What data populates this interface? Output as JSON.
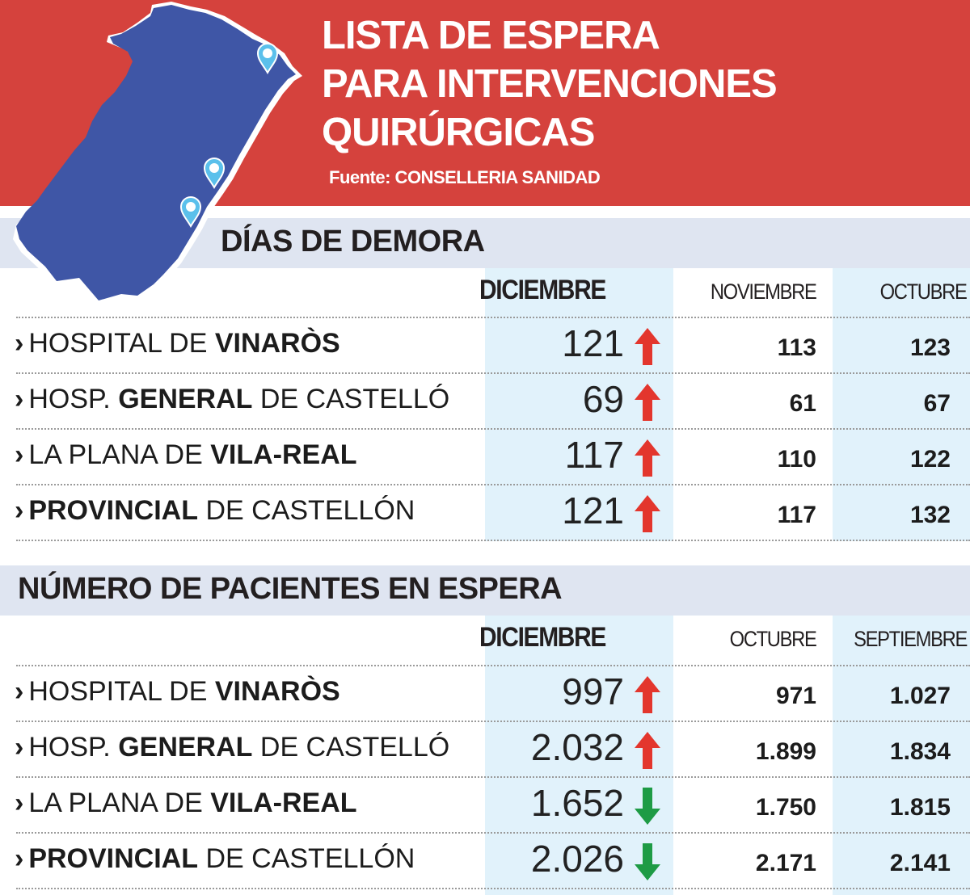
{
  "header": {
    "title_lines": [
      "LISTA DE ESPERA",
      "PARA INTERVENCIONES",
      "QUIRÚRGICAS"
    ],
    "source": "Fuente: CONSELLERIA SANIDAD",
    "background_color": "#d5423d",
    "map_color": "#3f56a6",
    "map_icon": "hospital-pin-icon"
  },
  "colors": {
    "up": "#e3362d",
    "down": "#1e9b45",
    "band": "#dfe5f1",
    "highlight": "#e1f2fb"
  },
  "chart_data": [
    {
      "type": "table",
      "title": "DÍAS DE DEMORA",
      "columns": [
        "DICIEMBRE",
        "NOVIEMBRE",
        "OCTUBRE"
      ],
      "rows": [
        {
          "label_parts": [
            {
              "text": "HOSPITAL DE ",
              "bold": false
            },
            {
              "text": "VINARÒS",
              "bold": true
            }
          ],
          "values": [
            "121",
            "113",
            "123"
          ],
          "trend": "up"
        },
        {
          "label_parts": [
            {
              "text": "HOSP. ",
              "bold": false
            },
            {
              "text": "GENERAL",
              "bold": true
            },
            {
              "text": " DE CASTELLÓ",
              "bold": false
            }
          ],
          "values": [
            "69",
            "61",
            "67"
          ],
          "trend": "up"
        },
        {
          "label_parts": [
            {
              "text": "LA PLANA DE ",
              "bold": false
            },
            {
              "text": "VILA-REAL",
              "bold": true
            }
          ],
          "values": [
            "117",
            "110",
            "122"
          ],
          "trend": "up"
        },
        {
          "label_parts": [
            {
              "text": "PROVINCIAL",
              "bold": true
            },
            {
              "text": " DE CASTELLÓN",
              "bold": false
            }
          ],
          "values": [
            "121",
            "117",
            "132"
          ],
          "trend": "up"
        }
      ]
    },
    {
      "type": "table",
      "title": "NÚMERO DE PACIENTES EN ESPERA",
      "columns": [
        "DICIEMBRE",
        "OCTUBRE",
        "SEPTIEMBRE"
      ],
      "rows": [
        {
          "label_parts": [
            {
              "text": "HOSPITAL DE ",
              "bold": false
            },
            {
              "text": "VINARÒS",
              "bold": true
            }
          ],
          "values": [
            "997",
            "971",
            "1.027"
          ],
          "trend": "up"
        },
        {
          "label_parts": [
            {
              "text": "HOSP. ",
              "bold": false
            },
            {
              "text": "GENERAL",
              "bold": true
            },
            {
              "text": " DE CASTELLÓ",
              "bold": false
            }
          ],
          "values": [
            "2.032",
            "1.899",
            "1.834"
          ],
          "trend": "up"
        },
        {
          "label_parts": [
            {
              "text": "LA PLANA DE ",
              "bold": false
            },
            {
              "text": "VILA-REAL",
              "bold": true
            }
          ],
          "values": [
            "1.652",
            "1.750",
            "1.815"
          ],
          "trend": "down"
        },
        {
          "label_parts": [
            {
              "text": "PROVINCIAL",
              "bold": true
            },
            {
              "text": " DE CASTELLÓN",
              "bold": false
            }
          ],
          "values": [
            "2.026",
            "2.171",
            "2.141"
          ],
          "trend": "down"
        }
      ]
    }
  ]
}
